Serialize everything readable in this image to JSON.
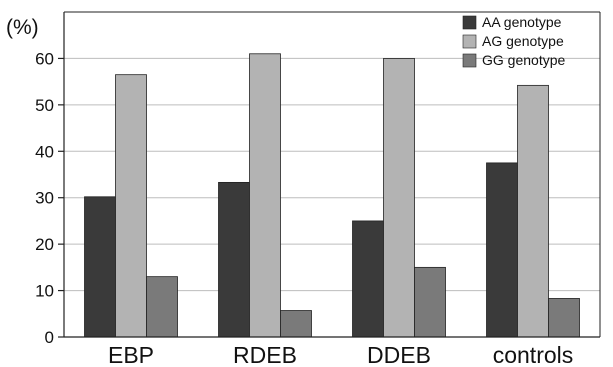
{
  "chart_data": {
    "type": "bar",
    "ylabel": "(%)",
    "ylim": [
      0,
      70
    ],
    "yticks": [
      0,
      10,
      20,
      30,
      40,
      50,
      60
    ],
    "grid": true,
    "legend_placement": "top-right",
    "categories": [
      "EBP",
      "RDEB",
      "DDEB",
      "controls"
    ],
    "series": [
      {
        "name": "AA genotype",
        "color": "#3a3a3a",
        "values": [
          30.2,
          33.3,
          25.0,
          37.5
        ]
      },
      {
        "name": "AG genotype",
        "color": "#b3b3b3",
        "values": [
          56.5,
          61.0,
          60.0,
          54.2
        ]
      },
      {
        "name": "GG genotype",
        "color": "#7a7a7a",
        "values": [
          13.0,
          5.7,
          15.0,
          8.3
        ]
      }
    ]
  }
}
